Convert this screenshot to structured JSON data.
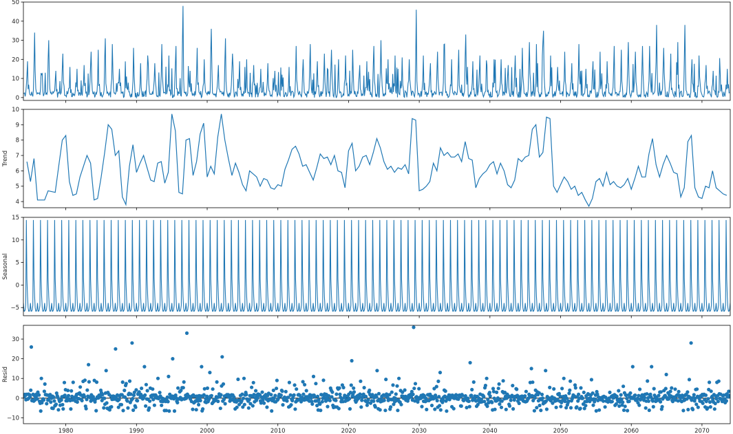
{
  "colors": {
    "series": "#1f77b4",
    "zero_line": "#000000",
    "frame": "#000000"
  },
  "x_axis": {
    "range": [
      1974,
      2074
    ],
    "ticks": [
      1980,
      1990,
      2000,
      2010,
      2020,
      2030,
      2040,
      2050,
      2060,
      2070
    ],
    "tick_labels": [
      "1980",
      "1990",
      "2000",
      "2010",
      "2020",
      "2030",
      "2040",
      "2050",
      "2060",
      "2070"
    ]
  },
  "chart_data": [
    {
      "type": "line",
      "ylabel": "",
      "ylim": [
        -1.5,
        50
      ],
      "yticks": [
        0,
        10,
        20,
        30,
        40,
        50
      ],
      "ytick_labels": [
        "0",
        "10",
        "20",
        "30",
        "40",
        "50"
      ],
      "x_range": [
        1974,
        2074
      ],
      "sampling": "monthly, approximated",
      "peaks": [
        [
          1974.6,
          19
        ],
        [
          1975.6,
          34
        ],
        [
          1976.6,
          12
        ],
        [
          1977.6,
          30
        ],
        [
          1978.6,
          14
        ],
        [
          1979.6,
          23
        ],
        [
          1980.6,
          16
        ],
        [
          1981.6,
          15
        ],
        [
          1982.6,
          17
        ],
        [
          1983.6,
          24
        ],
        [
          1984.6,
          25
        ],
        [
          1985.6,
          31
        ],
        [
          1986.6,
          28
        ],
        [
          1987.6,
          15
        ],
        [
          1988.6,
          11
        ],
        [
          1989.6,
          26
        ],
        [
          1990.6,
          18
        ],
        [
          1991.6,
          22
        ],
        [
          1992.6,
          18
        ],
        [
          1993.6,
          28
        ],
        [
          1994.6,
          22
        ],
        [
          1995.6,
          27
        ],
        [
          1996.6,
          48
        ],
        [
          1997.6,
          14
        ],
        [
          1998.6,
          26
        ],
        [
          1999.6,
          20
        ],
        [
          2000.6,
          36
        ],
        [
          2001.6,
          17
        ],
        [
          2002.6,
          31
        ],
        [
          2003.6,
          23
        ],
        [
          2004.6,
          19
        ],
        [
          2005.6,
          20
        ],
        [
          2006.6,
          17
        ],
        [
          2007.6,
          15
        ],
        [
          2008.6,
          18
        ],
        [
          2009.6,
          14
        ],
        [
          2010.6,
          12
        ],
        [
          2011.6,
          16
        ],
        [
          2012.6,
          27
        ],
        [
          2013.6,
          20
        ],
        [
          2014.6,
          28
        ],
        [
          2015.6,
          19
        ],
        [
          2016.6,
          23
        ],
        [
          2017.6,
          25
        ],
        [
          2018.6,
          20
        ],
        [
          2019.6,
          22
        ],
        [
          2020.6,
          25
        ],
        [
          2021.6,
          17
        ],
        [
          2022.6,
          19
        ],
        [
          2023.6,
          27
        ],
        [
          2024.6,
          30
        ],
        [
          2025.6,
          20
        ],
        [
          2026.6,
          22
        ],
        [
          2027.6,
          21
        ],
        [
          2028.6,
          20
        ],
        [
          2029.6,
          46
        ],
        [
          2030.6,
          22
        ],
        [
          2031.6,
          18
        ],
        [
          2032.6,
          24
        ],
        [
          2033.6,
          28
        ],
        [
          2034.6,
          20
        ],
        [
          2035.6,
          25
        ],
        [
          2036.6,
          33
        ],
        [
          2037.6,
          19
        ],
        [
          2038.6,
          22
        ],
        [
          2039.6,
          17
        ],
        [
          2040.6,
          20
        ],
        [
          2041.6,
          20
        ],
        [
          2042.6,
          17
        ],
        [
          2043.6,
          22
        ],
        [
          2044.6,
          26
        ],
        [
          2045.6,
          29
        ],
        [
          2046.6,
          28
        ],
        [
          2047.6,
          35
        ],
        [
          2048.6,
          22
        ],
        [
          2049.6,
          16
        ],
        [
          2050.6,
          24
        ],
        [
          2051.6,
          18
        ],
        [
          2052.6,
          28
        ],
        [
          2053.6,
          15
        ],
        [
          2054.6,
          19
        ],
        [
          2055.6,
          24
        ],
        [
          2056.6,
          19
        ],
        [
          2057.6,
          27
        ],
        [
          2058.6,
          25
        ],
        [
          2059.6,
          29
        ],
        [
          2060.6,
          24
        ],
        [
          2061.6,
          27
        ],
        [
          2062.6,
          27
        ],
        [
          2063.6,
          38
        ],
        [
          2064.6,
          26
        ],
        [
          2065.6,
          23
        ],
        [
          2066.6,
          29
        ],
        [
          2067.6,
          38
        ],
        [
          2068.6,
          20
        ],
        [
          2069.6,
          22
        ],
        [
          2070.6,
          17
        ],
        [
          2071.6,
          14
        ],
        [
          2072.6,
          12
        ],
        [
          2073.6,
          15
        ]
      ]
    },
    {
      "type": "line",
      "ylabel": "Trend",
      "ylim": [
        3.6,
        10
      ],
      "yticks": [
        4,
        5,
        6,
        7,
        8,
        9,
        10
      ],
      "ytick_labels": [
        "4",
        "5",
        "6",
        "7",
        "8",
        "9",
        "10"
      ],
      "points": [
        [
          1974.5,
          6.6
        ],
        [
          1975.0,
          5.3
        ],
        [
          1975.5,
          6.8
        ],
        [
          1976.0,
          4.1
        ],
        [
          1977.0,
          4.1
        ],
        [
          1977.5,
          4.7
        ],
        [
          1978.5,
          4.6
        ],
        [
          1979.0,
          6.3
        ],
        [
          1979.5,
          8.0
        ],
        [
          1980.0,
          8.3
        ],
        [
          1980.5,
          5.3
        ],
        [
          1981.0,
          4.4
        ],
        [
          1981.5,
          4.5
        ],
        [
          1982.0,
          5.6
        ],
        [
          1982.5,
          6.3
        ],
        [
          1983.0,
          7.0
        ],
        [
          1983.5,
          6.5
        ],
        [
          1984.0,
          4.1
        ],
        [
          1984.5,
          4.2
        ],
        [
          1985.0,
          5.6
        ],
        [
          1985.5,
          7.2
        ],
        [
          1986.0,
          9.0
        ],
        [
          1986.5,
          8.7
        ],
        [
          1987.0,
          7.0
        ],
        [
          1987.5,
          7.3
        ],
        [
          1988.0,
          4.3
        ],
        [
          1988.5,
          3.8
        ],
        [
          1989.0,
          6.3
        ],
        [
          1989.5,
          7.7
        ],
        [
          1990.0,
          5.9
        ],
        [
          1990.5,
          6.5
        ],
        [
          1991.0,
          7.0
        ],
        [
          1991.5,
          6.2
        ],
        [
          1992.0,
          5.4
        ],
        [
          1992.5,
          5.3
        ],
        [
          1993.0,
          6.5
        ],
        [
          1993.5,
          6.6
        ],
        [
          1994.0,
          5.2
        ],
        [
          1994.5,
          5.9
        ],
        [
          1995.0,
          9.7
        ],
        [
          1995.5,
          8.6
        ],
        [
          1996.0,
          4.6
        ],
        [
          1996.5,
          4.5
        ],
        [
          1997.0,
          8.0
        ],
        [
          1997.5,
          8.1
        ],
        [
          1998.0,
          5.7
        ],
        [
          1998.5,
          6.6
        ],
        [
          1999.0,
          8.4
        ],
        [
          1999.5,
          9.1
        ],
        [
          2000.0,
          5.6
        ],
        [
          2000.5,
          6.3
        ],
        [
          2001.0,
          5.8
        ],
        [
          2001.5,
          8.2
        ],
        [
          2002.0,
          9.7
        ],
        [
          2002.5,
          8.0
        ],
        [
          2003.0,
          6.8
        ],
        [
          2003.5,
          5.7
        ],
        [
          2004.0,
          6.5
        ],
        [
          2004.5,
          5.9
        ],
        [
          2005.0,
          5.1
        ],
        [
          2005.5,
          4.7
        ],
        [
          2006.0,
          6.0
        ],
        [
          2006.5,
          5.8
        ],
        [
          2007.0,
          5.6
        ],
        [
          2007.5,
          5.0
        ],
        [
          2008.0,
          5.5
        ],
        [
          2008.5,
          5.4
        ],
        [
          2009.0,
          4.9
        ],
        [
          2009.5,
          4.8
        ],
        [
          2010.0,
          5.1
        ],
        [
          2010.5,
          5.0
        ],
        [
          2011.0,
          6.1
        ],
        [
          2011.5,
          6.7
        ],
        [
          2012.0,
          7.4
        ],
        [
          2012.5,
          7.6
        ],
        [
          2013.0,
          7.1
        ],
        [
          2013.5,
          6.3
        ],
        [
          2014.0,
          6.4
        ],
        [
          2014.5,
          5.9
        ],
        [
          2015.0,
          5.4
        ],
        [
          2015.5,
          6.2
        ],
        [
          2016.0,
          7.1
        ],
        [
          2016.5,
          6.8
        ],
        [
          2017.0,
          6.9
        ],
        [
          2017.5,
          6.4
        ],
        [
          2018.0,
          7.0
        ],
        [
          2018.5,
          6.0
        ],
        [
          2019.0,
          5.9
        ],
        [
          2019.5,
          4.9
        ],
        [
          2020.0,
          7.3
        ],
        [
          2020.5,
          7.8
        ],
        [
          2021.0,
          6.0
        ],
        [
          2021.5,
          6.3
        ],
        [
          2022.0,
          6.9
        ],
        [
          2022.5,
          7.0
        ],
        [
          2023.0,
          6.4
        ],
        [
          2023.5,
          7.2
        ],
        [
          2024.0,
          8.1
        ],
        [
          2024.5,
          7.5
        ],
        [
          2025.0,
          6.6
        ],
        [
          2025.5,
          6.1
        ],
        [
          2026.0,
          6.3
        ],
        [
          2026.5,
          5.9
        ],
        [
          2027.0,
          6.2
        ],
        [
          2027.5,
          6.1
        ],
        [
          2028.0,
          6.4
        ],
        [
          2028.5,
          5.8
        ],
        [
          2029.0,
          9.4
        ],
        [
          2029.5,
          9.3
        ],
        [
          2030.0,
          4.7
        ],
        [
          2030.5,
          4.8
        ],
        [
          2031.0,
          5.0
        ],
        [
          2031.5,
          5.3
        ],
        [
          2032.0,
          6.5
        ],
        [
          2032.5,
          6.0
        ],
        [
          2033.0,
          7.5
        ],
        [
          2033.5,
          7.0
        ],
        [
          2034.0,
          7.2
        ],
        [
          2034.5,
          6.9
        ],
        [
          2035.0,
          6.9
        ],
        [
          2035.5,
          7.1
        ],
        [
          2036.0,
          6.6
        ],
        [
          2036.5,
          7.9
        ],
        [
          2037.0,
          6.8
        ],
        [
          2037.5,
          6.7
        ],
        [
          2038.0,
          4.9
        ],
        [
          2038.5,
          5.5
        ],
        [
          2039.0,
          5.8
        ],
        [
          2039.5,
          6.0
        ],
        [
          2040.0,
          6.4
        ],
        [
          2040.5,
          6.6
        ],
        [
          2041.0,
          5.8
        ],
        [
          2041.5,
          6.5
        ],
        [
          2042.0,
          6.0
        ],
        [
          2042.5,
          5.1
        ],
        [
          2043.0,
          4.9
        ],
        [
          2043.5,
          5.4
        ],
        [
          2044.0,
          6.8
        ],
        [
          2044.5,
          6.6
        ],
        [
          2045.0,
          6.9
        ],
        [
          2045.5,
          7.0
        ],
        [
          2046.0,
          8.7
        ],
        [
          2046.5,
          9.0
        ],
        [
          2047.0,
          6.9
        ],
        [
          2047.5,
          7.2
        ],
        [
          2048.0,
          9.5
        ],
        [
          2048.5,
          9.4
        ],
        [
          2049.0,
          5.0
        ],
        [
          2049.5,
          4.6
        ],
        [
          2050.0,
          5.1
        ],
        [
          2050.5,
          5.6
        ],
        [
          2051.0,
          5.3
        ],
        [
          2051.5,
          4.8
        ],
        [
          2052.0,
          5.0
        ],
        [
          2052.5,
          4.4
        ],
        [
          2053.0,
          4.6
        ],
        [
          2053.5,
          4.1
        ],
        [
          2054.0,
          3.7
        ],
        [
          2054.5,
          4.2
        ],
        [
          2055.0,
          5.3
        ],
        [
          2055.5,
          5.5
        ],
        [
          2056.0,
          5.0
        ],
        [
          2056.5,
          5.9
        ],
        [
          2057.0,
          5.1
        ],
        [
          2057.5,
          5.3
        ],
        [
          2058.0,
          5.0
        ],
        [
          2058.5,
          4.9
        ],
        [
          2059.0,
          5.1
        ],
        [
          2059.5,
          5.5
        ],
        [
          2060.0,
          4.8
        ],
        [
          2060.5,
          5.5
        ],
        [
          2061.0,
          6.3
        ],
        [
          2061.5,
          5.6
        ],
        [
          2062.0,
          5.6
        ],
        [
          2062.5,
          7.1
        ],
        [
          2063.0,
          8.1
        ],
        [
          2063.5,
          6.4
        ],
        [
          2064.0,
          5.6
        ],
        [
          2064.5,
          6.4
        ],
        [
          2065.0,
          7.0
        ],
        [
          2065.5,
          6.5
        ],
        [
          2066.0,
          5.9
        ],
        [
          2066.5,
          5.8
        ],
        [
          2067.0,
          4.3
        ],
        [
          2067.5,
          4.9
        ],
        [
          2068.0,
          7.9
        ],
        [
          2068.5,
          8.3
        ],
        [
          2069.0,
          4.9
        ],
        [
          2069.5,
          4.3
        ],
        [
          2070.0,
          4.2
        ],
        [
          2070.5,
          5.0
        ],
        [
          2071.0,
          4.9
        ],
        [
          2071.5,
          6.0
        ],
        [
          2072.0,
          4.9
        ],
        [
          2072.5,
          4.7
        ],
        [
          2073.0,
          4.5
        ],
        [
          2073.5,
          4.4
        ]
      ]
    },
    {
      "type": "line",
      "ylabel": "Seasonal",
      "ylim": [
        -6.8,
        15
      ],
      "yticks": [
        -5,
        0,
        5,
        10,
        15
      ],
      "ytick_labels": [
        "−5",
        "0",
        "5",
        "10",
        "15"
      ],
      "period": 12,
      "monthly_values": [
        -4.0,
        -5.8,
        -5.8,
        -5.5,
        -4.5,
        14.4,
        1.4,
        -2.5,
        -5.0,
        -5.8,
        -5.8,
        -5.4
      ]
    },
    {
      "type": "scatter",
      "ylabel": "Resid",
      "ylim": [
        -13,
        37
      ],
      "yticks": [
        -10,
        0,
        10,
        20,
        30
      ],
      "ytick_labels": [
        "−10",
        "0",
        "10",
        "20",
        "30"
      ],
      "zero_line": true,
      "outliers": [
        [
          1975.1,
          26
        ],
        [
          1976.5,
          10
        ],
        [
          1983.2,
          17
        ],
        [
          1985.7,
          14
        ],
        [
          1987.0,
          25
        ],
        [
          1989.3,
          28
        ],
        [
          1991.1,
          16
        ],
        [
          1993.0,
          10
        ],
        [
          1994.5,
          11
        ],
        [
          1995.1,
          20
        ],
        [
          1997.1,
          33
        ],
        [
          1999.2,
          16
        ],
        [
          2000.3,
          13
        ],
        [
          2002.1,
          21
        ],
        [
          2005.2,
          10
        ],
        [
          2009.8,
          9
        ],
        [
          2015.0,
          11
        ],
        [
          2020.4,
          19
        ],
        [
          2024.0,
          14
        ],
        [
          2027.1,
          10
        ],
        [
          2029.2,
          36
        ],
        [
          2032.9,
          13
        ],
        [
          2037.2,
          18
        ],
        [
          2039.5,
          10
        ],
        [
          2045.8,
          15
        ],
        [
          2047.8,
          14
        ],
        [
          2050.4,
          10
        ],
        [
          2060.2,
          16
        ],
        [
          2062.8,
          16
        ],
        [
          2064.9,
          12
        ],
        [
          2068.4,
          28
        ],
        [
          2071.0,
          8
        ],
        [
          2072.6,
          2
        ]
      ]
    }
  ]
}
